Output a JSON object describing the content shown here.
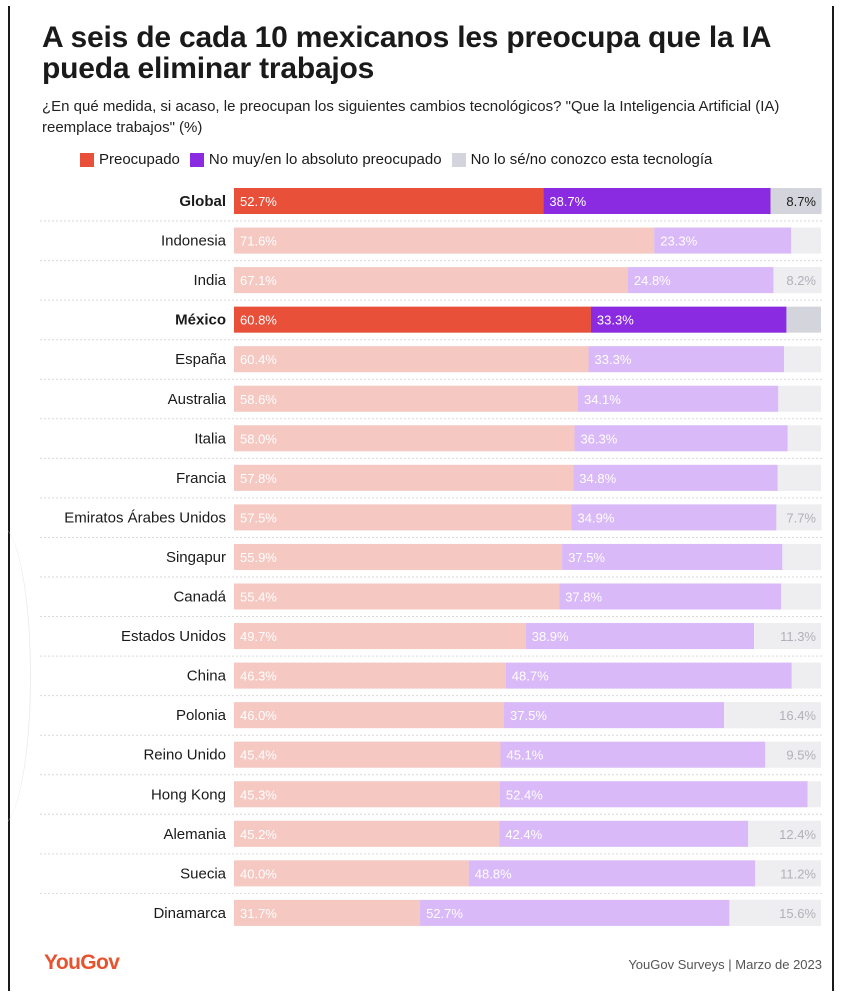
{
  "title": "A seis de cada 10 mexicanos les preocupa que la IA pueda eliminar trabajos",
  "subtitle": "¿En qué medida, si acaso, le preocupan los siguientes cambios tecnológicos? \"Que la Inteligencia Artificial (IA) reemplace trabajos\" (%)",
  "legend": [
    {
      "label": "Preocupado",
      "color": "#e8503a"
    },
    {
      "label": "No muy/en lo absoluto preocupado",
      "color": "#8a2be2"
    },
    {
      "label": "No lo sé/no conozco esta tecnología",
      "color": "#d4d4dc"
    }
  ],
  "footer": {
    "logo": "YouGov",
    "source": "YouGov Surveys | Marzo de 2023"
  },
  "colors": {
    "preocupado": "#e8503a",
    "no_preocupado": "#8a2be2",
    "no_lo_se": "#d4d4dc",
    "preocupado_light": "#f6c8c2",
    "no_preocupado_light": "#d9b9f8",
    "no_lo_se_light": "#eeeef1"
  },
  "chart_data": {
    "type": "bar",
    "orientation": "horizontal",
    "stacked": true,
    "xlim": [
      0,
      100
    ],
    "categories": [
      "Global",
      "Indonesia",
      "India",
      "México",
      "España",
      "Australia",
      "Italia",
      "Francia",
      "Emiratos Árabes Unidos",
      "Singapur",
      "Canadá",
      "Estados Unidos",
      "China",
      "Polonia",
      "Reino Unido",
      "Hong Kong",
      "Alemania",
      "Suecia",
      "Dinamarca"
    ],
    "highlighted": [
      "Global",
      "México"
    ],
    "series": [
      {
        "name": "Preocupado",
        "values": [
          52.7,
          71.6,
          67.1,
          60.8,
          60.4,
          58.6,
          58.0,
          57.8,
          57.5,
          55.9,
          55.4,
          49.7,
          46.3,
          46.0,
          45.4,
          45.3,
          45.2,
          40.0,
          31.7
        ]
      },
      {
        "name": "No muy/en lo absoluto preocupado",
        "values": [
          38.7,
          23.3,
          24.8,
          33.3,
          33.3,
          34.1,
          36.3,
          34.8,
          34.9,
          37.5,
          37.8,
          38.9,
          48.7,
          37.5,
          45.1,
          52.4,
          42.4,
          48.8,
          52.7
        ]
      },
      {
        "name": "No lo sé/no conozco esta tecnología",
        "values": [
          8.7,
          null,
          8.2,
          null,
          null,
          null,
          null,
          null,
          7.7,
          null,
          null,
          11.3,
          null,
          16.4,
          9.5,
          null,
          12.4,
          11.2,
          15.6
        ]
      }
    ],
    "labels": [
      [
        "52.7%",
        "38.7%",
        "8.7%"
      ],
      [
        "71.6%",
        "23.3%",
        ""
      ],
      [
        "67.1%",
        "24.8%",
        "8.2%"
      ],
      [
        "60.8%",
        "33.3%",
        ""
      ],
      [
        "60.4%",
        "33.3%",
        ""
      ],
      [
        "58.6%",
        "34.1%",
        ""
      ],
      [
        "58.0%",
        "36.3%",
        ""
      ],
      [
        "57.8%",
        "34.8%",
        ""
      ],
      [
        "57.5%",
        "34.9%",
        "7.7%"
      ],
      [
        "55.9%",
        "37.5%",
        ""
      ],
      [
        "55.4%",
        "37.8%",
        ""
      ],
      [
        "49.7%",
        "38.9%",
        "11.3%"
      ],
      [
        "46.3%",
        "48.7%",
        ""
      ],
      [
        "46.0%",
        "37.5%",
        "16.4%"
      ],
      [
        "45.4%",
        "45.1%",
        "9.5%"
      ],
      [
        "45.3%",
        "52.4%",
        ""
      ],
      [
        "45.2%",
        "42.4%",
        "12.4%"
      ],
      [
        "40.0%",
        "48.8%",
        "11.2%"
      ],
      [
        "31.7%",
        "52.7%",
        "15.6%"
      ]
    ]
  }
}
